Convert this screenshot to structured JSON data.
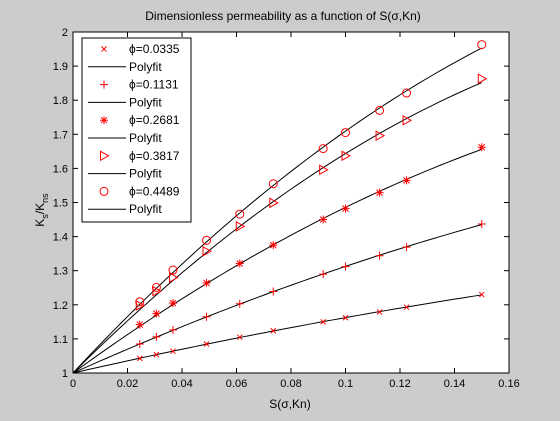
{
  "chart_data": {
    "type": "scatter",
    "title": "Dimensionless permeability as a function of S(σ,Kn)",
    "xlabel": "S(σ,Kn)",
    "ylabel_main": "K",
    "ylabel_sub_1": "s",
    "ylabel_mid": "/K",
    "ylabel_sub_2": "ns",
    "xlim": [
      0,
      0.16
    ],
    "ylim": [
      1,
      2
    ],
    "xticks": [
      0,
      0.02,
      0.04,
      0.06,
      0.08,
      0.1,
      0.12,
      0.14,
      0.16
    ],
    "xtick_labels": [
      "0",
      "0.02",
      "0.04",
      "0.06",
      "0.08",
      "0.1",
      "0.12",
      "0.14",
      "0.16"
    ],
    "yticks": [
      1,
      1.1,
      1.2,
      1.3,
      1.4,
      1.5,
      1.6,
      1.7,
      1.8,
      1.9,
      2
    ],
    "ytick_labels": [
      "1",
      "1.1",
      "1.2",
      "1.3",
      "1.4",
      "1.5",
      "1.6",
      "1.7",
      "1.8",
      "1.9",
      "2"
    ],
    "grid": false,
    "legend_position": "top-left",
    "marker_color": "#ff0000",
    "line_color": "#000000",
    "x": [
      0.0245,
      0.0306,
      0.0367,
      0.049,
      0.0612,
      0.0735,
      0.0918,
      0.1,
      0.1125,
      0.1224,
      0.15
    ],
    "series": [
      {
        "name": "ϕ=0.0335",
        "marker": "x",
        "values": [
          1.043,
          1.054,
          1.064,
          1.085,
          1.105,
          1.124,
          1.15,
          1.162,
          1.179,
          1.193,
          1.23
        ]
      },
      {
        "name": "ϕ=0.1131",
        "marker": "+",
        "values": [
          1.085,
          1.106,
          1.126,
          1.165,
          1.203,
          1.239,
          1.29,
          1.312,
          1.344,
          1.369,
          1.437
        ]
      },
      {
        "name": "ϕ=0.2681",
        "marker": "*",
        "values": [
          1.142,
          1.174,
          1.205,
          1.264,
          1.321,
          1.375,
          1.45,
          1.482,
          1.529,
          1.565,
          1.662
        ]
      },
      {
        "name": "ϕ=0.3817",
        "marker": "triangle-right",
        "values": [
          1.198,
          1.24,
          1.28,
          1.357,
          1.43,
          1.499,
          1.596,
          1.637,
          1.696,
          1.741,
          1.863
        ]
      },
      {
        "name": "ϕ=0.4489",
        "marker": "circle",
        "values": [
          1.209,
          1.251,
          1.302,
          1.389,
          1.466,
          1.555,
          1.658,
          1.705,
          1.77,
          1.821,
          1.963
        ]
      }
    ],
    "fit_label": "Polyfit"
  }
}
